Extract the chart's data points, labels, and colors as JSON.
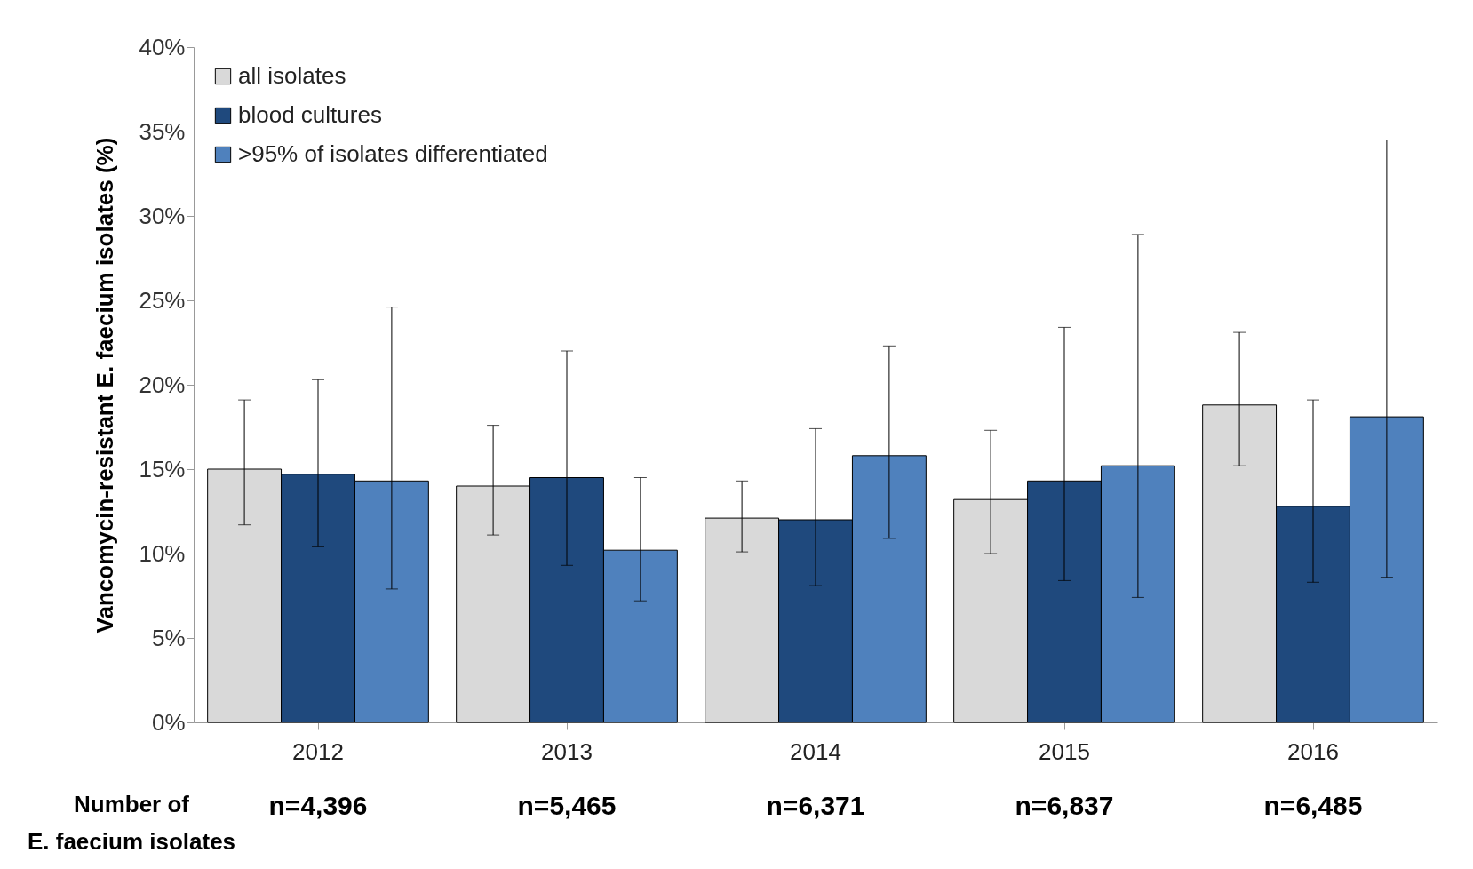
{
  "chart_data": {
    "type": "bar",
    "ylabel": "Vancomycin-resistant  E. faecium isolates (%)",
    "categories": [
      "2012",
      "2013",
      "2014",
      "2015",
      "2016"
    ],
    "series": [
      {
        "name": "all isolates",
        "color": "#d9d9d9",
        "values": [
          15.0,
          14.0,
          12.1,
          13.2,
          18.8
        ],
        "errors": [
          [
            11.7,
            19.1
          ],
          [
            11.1,
            17.6
          ],
          [
            10.1,
            14.3
          ],
          [
            10.0,
            17.3
          ],
          [
            15.2,
            23.1
          ]
        ]
      },
      {
        "name": "blood cultures",
        "color": "#1f497d",
        "values": [
          14.7,
          14.5,
          12.0,
          14.3,
          12.8
        ],
        "errors": [
          [
            10.4,
            20.3
          ],
          [
            9.3,
            22.0
          ],
          [
            8.1,
            17.4
          ],
          [
            8.4,
            23.4
          ],
          [
            8.3,
            19.1
          ]
        ]
      },
      {
        "name": ">95% of isolates differentiated",
        "color": "#4f81bd",
        "values": [
          14.3,
          10.2,
          15.8,
          15.2,
          18.1
        ],
        "errors": [
          [
            7.9,
            24.6
          ],
          [
            7.2,
            14.5
          ],
          [
            10.9,
            22.3
          ],
          [
            7.4,
            28.9
          ],
          [
            8.6,
            34.5
          ]
        ]
      }
    ],
    "ylim": [
      0,
      40
    ],
    "yticks": [
      {
        "value": 0,
        "label": "0%"
      },
      {
        "value": 5,
        "label": "5%"
      },
      {
        "value": 10,
        "label": "10%"
      },
      {
        "value": 15,
        "label": "15%"
      },
      {
        "value": 20,
        "label": "20%"
      },
      {
        "value": 25,
        "label": "25%"
      },
      {
        "value": 30,
        "label": "30%"
      },
      {
        "value": 35,
        "label": "35%"
      },
      {
        "value": 40,
        "label": "40%"
      }
    ],
    "grid": false,
    "legend": "top left",
    "annotations": [
      "Number of E. faecium isolates",
      "n=4,396",
      "n=5,465",
      "n=6,371",
      "n=6,837",
      "n=6,485"
    ]
  }
}
